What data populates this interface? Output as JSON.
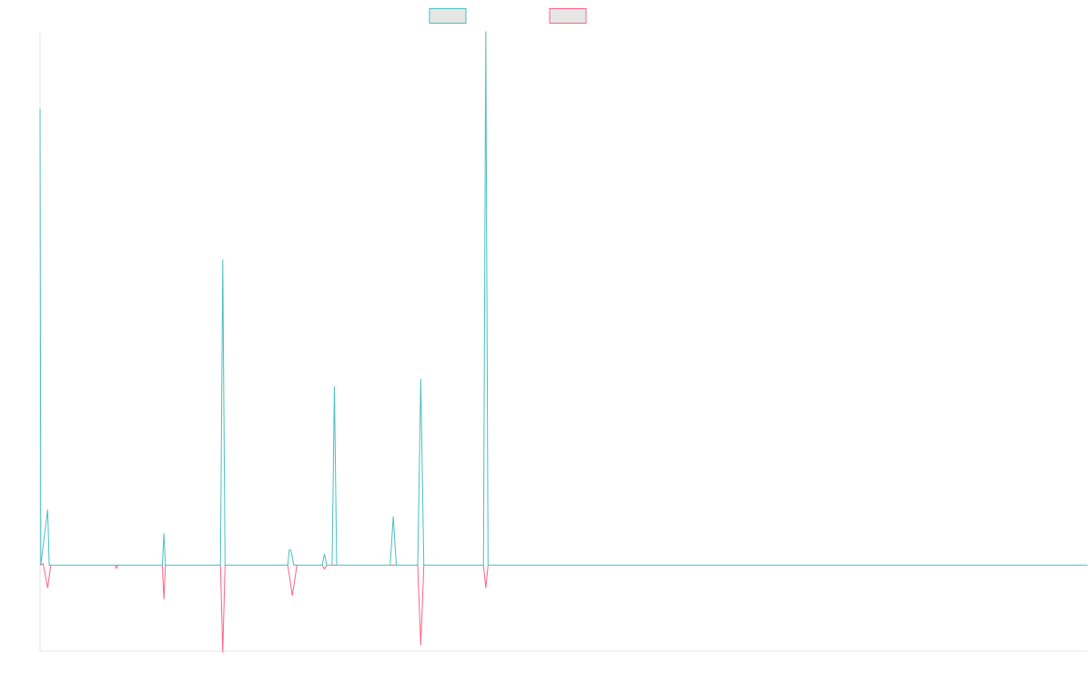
{
  "chart_data": {
    "type": "line",
    "title": "",
    "xlabel": "",
    "ylabel": "",
    "grid": false,
    "legend_position": "top-center",
    "ylim": [
      -100,
      720
    ],
    "series": [
      {
        "name": "",
        "color": "#4bc0c0",
        "points": [
          [
            0.0,
            620
          ],
          [
            0.6,
            0
          ],
          [
            1.2,
            0
          ],
          [
            1.8,
            0
          ],
          [
            2.4,
            0
          ],
          [
            3.0,
            0
          ],
          [
            3.6,
            0
          ],
          [
            4.2,
            0
          ],
          [
            4.8,
            0
          ],
          [
            5.4,
            0
          ],
          [
            6.0,
            0
          ],
          [
            6.6,
            0
          ],
          [
            7.2,
            0
          ],
          [
            7.8,
            0
          ],
          [
            8.4,
            0
          ],
          [
            9.0,
            0
          ],
          [
            9.6,
            0
          ],
          [
            10.2,
            0
          ],
          [
            10.8,
            0
          ],
          [
            11.4,
            0
          ],
          [
            12.0,
            0
          ],
          [
            12.6,
            0
          ],
          [
            13.2,
            0
          ],
          [
            13.8,
            0
          ],
          [
            14.4,
            0
          ],
          [
            15.0,
            0
          ],
          [
            15.6,
            0
          ],
          [
            16.2,
            0
          ],
          [
            16.8,
            0
          ],
          [
            17.4,
            0
          ],
          [
            18.0,
            0
          ],
          [
            18.6,
            0
          ],
          [
            19.2,
            0
          ],
          [
            19.8,
            0
          ],
          [
            20.4,
            0
          ],
          [
            21.0,
            0
          ],
          [
            21.6,
            0
          ],
          [
            22.2,
            0
          ],
          [
            22.8,
            0
          ],
          [
            23.4,
            0
          ],
          [
            24.0,
            0
          ],
          [
            24.6,
            0
          ],
          [
            25.2,
            0
          ],
          [
            25.8,
            0
          ],
          [
            26.4,
            0
          ],
          [
            27.0,
            0
          ],
          [
            27.6,
            0
          ],
          [
            28.2,
            0
          ],
          [
            28.8,
            0
          ],
          [
            29.4,
            0
          ],
          [
            30.0,
            0
          ],
          [
            30.6,
            0
          ],
          [
            31.2,
            0
          ],
          [
            31.8,
            0
          ],
          [
            32.4,
            0
          ],
          [
            33.0,
            0
          ],
          [
            33.6,
            0
          ],
          [
            34.2,
            0
          ],
          [
            34.8,
            0
          ],
          [
            35.4,
            0
          ],
          [
            36.0,
            0
          ],
          [
            36.6,
            0
          ],
          [
            37.2,
            0
          ],
          [
            37.8,
            0
          ],
          [
            38.4,
            0
          ],
          [
            39.0,
            0
          ],
          [
            39.6,
            0
          ],
          [
            40.2,
            0
          ],
          [
            40.8,
            0
          ],
          [
            41.4,
            0
          ]
        ]
      }
    ]
  },
  "legend": [
    {
      "label": "",
      "color": "#4bc0c0"
    },
    {
      "label": "",
      "color": "#ff6384"
    }
  ],
  "traces": {
    "teal": {
      "name": "",
      "color": "#4bc0c0",
      "points": [
        [
          0.0,
          620
        ],
        [
          0.5,
          0
        ],
        [
          1.0,
          75
        ],
        [
          1.5,
          0
        ],
        [
          2.0,
          0
        ],
        [
          2.5,
          0
        ],
        [
          3.0,
          0
        ],
        [
          3.5,
          0
        ],
        [
          4.0,
          0
        ],
        [
          4.5,
          0
        ],
        [
          5.0,
          0
        ],
        [
          5.5,
          0
        ],
        [
          6.0,
          0
        ],
        [
          6.5,
          0
        ],
        [
          7.0,
          0
        ],
        [
          7.5,
          0
        ],
        [
          8.0,
          0
        ],
        [
          8.5,
          0
        ],
        [
          9.0,
          0
        ],
        [
          9.5,
          0
        ],
        [
          10.0,
          0
        ],
        [
          10.5,
          0
        ],
        [
          11.0,
          0
        ],
        [
          11.5,
          0
        ],
        [
          12.0,
          0
        ],
        [
          12.5,
          0
        ],
        [
          13.0,
          0
        ],
        [
          13.5,
          0
        ],
        [
          14.0,
          0
        ],
        [
          14.5,
          0
        ],
        [
          15.0,
          0
        ],
        [
          15.5,
          0
        ],
        [
          16.0,
          0
        ],
        [
          16.5,
          0
        ],
        [
          17.0,
          0
        ],
        [
          17.5,
          0
        ],
        [
          18.0,
          0
        ],
        [
          18.5,
          0
        ],
        [
          19.0,
          0
        ],
        [
          19.5,
          0
        ],
        [
          20.0,
          0
        ],
        [
          20.5,
          0
        ],
        [
          21.0,
          0
        ],
        [
          21.5,
          0
        ],
        [
          22.0,
          0
        ],
        [
          22.5,
          0
        ],
        [
          23.0,
          0
        ],
        [
          23.5,
          0
        ],
        [
          24.0,
          0
        ],
        [
          24.5,
          0
        ],
        [
          25.0,
          0
        ],
        [
          25.5,
          0
        ],
        [
          26.0,
          0
        ],
        [
          26.5,
          0
        ],
        [
          27.0,
          0
        ],
        [
          27.5,
          0
        ],
        [
          28.0,
          0
        ],
        [
          28.5,
          0
        ],
        [
          29.0,
          0
        ],
        [
          29.5,
          0
        ]
      ]
    }
  }
}
